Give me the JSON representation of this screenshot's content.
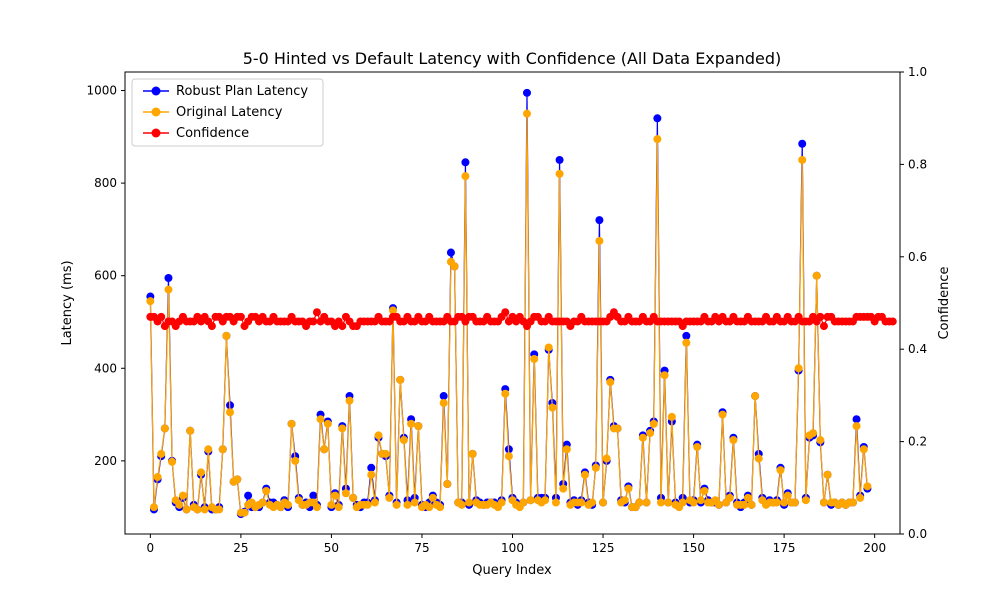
{
  "chart_data": {
    "type": "line",
    "title": "5-0 Hinted vs Default Latency with Confidence (All Data Expanded)",
    "xlabel": "Query Index",
    "ylabel": "Latency (ms)",
    "y2label": "Confidence",
    "xlim": [
      -7,
      207
    ],
    "ylim": [
      42,
      1040
    ],
    "y2lim": [
      0,
      1.0
    ],
    "xticks": [
      0,
      25,
      50,
      75,
      100,
      125,
      150,
      175,
      200
    ],
    "yticks": [
      200,
      400,
      600,
      800,
      1000
    ],
    "y2ticks": [
      0.0,
      0.2,
      0.4,
      0.6,
      0.8,
      1.0
    ],
    "legend_position": "upper left",
    "grid": false,
    "series": [
      {
        "name": "Robust Plan Latency",
        "color": "#0000ff",
        "axis": "left",
        "values": [
          555,
          95,
          160,
          210,
          270,
          595,
          200,
          110,
          100,
          120,
          95,
          265,
          105,
          95,
          170,
          100,
          220,
          95,
          95,
          100,
          225,
          470,
          320,
          155,
          160,
          85,
          90,
          125,
          100,
          100,
          100,
          110,
          140,
          110,
          110,
          105,
          100,
          115,
          100,
          280,
          210,
          120,
          105,
          110,
          100,
          125,
          105,
          300,
          225,
          285,
          100,
          130,
          105,
          275,
          140,
          340,
          120,
          105,
          100,
          110,
          110,
          185,
          115,
          250,
          215,
          210,
          125,
          530,
          110,
          375,
          250,
          115,
          290,
          120,
          275,
          105,
          100,
          110,
          125,
          110,
          105,
          340,
          150,
          650,
          620,
          110,
          110,
          845,
          105,
          215,
          115,
          110,
          105,
          110,
          110,
          110,
          105,
          115,
          355,
          225,
          120,
          110,
          105,
          110,
          995,
          115,
          430,
          120,
          120,
          120,
          440,
          325,
          120,
          850,
          150,
          235,
          110,
          115,
          105,
          115,
          175,
          110,
          105,
          190,
          720,
          110,
          200,
          375,
          275,
          270,
          115,
          110,
          145,
          100,
          100,
          110,
          255,
          110,
          265,
          285,
          940,
          120,
          395,
          110,
          285,
          110,
          105,
          120,
          470,
          110,
          115,
          235,
          110,
          140,
          115,
          110,
          110,
          105,
          305,
          110,
          125,
          250,
          110,
          100,
          110,
          125,
          105,
          340,
          215,
          120,
          110,
          115,
          110,
          115,
          185,
          105,
          130,
          110,
          110,
          395,
          885,
          120,
          250,
          255,
          600,
          240,
          110,
          170,
          105,
          110,
          105,
          110,
          105,
          110,
          110,
          290,
          125,
          230,
          140
        ]
      },
      {
        "name": "Original Latency",
        "color": "#ffa500",
        "axis": "left",
        "values": [
          545,
          100,
          165,
          215,
          270,
          570,
          198,
          115,
          105,
          125,
          95,
          265,
          100,
          95,
          175,
          95,
          225,
          100,
          95,
          95,
          225,
          470,
          305,
          155,
          160,
          88,
          88,
          105,
          110,
          100,
          105,
          110,
          135,
          105,
          100,
          105,
          100,
          110,
          105,
          280,
          200,
          115,
          105,
          105,
          110,
          110,
          100,
          290,
          225,
          280,
          105,
          125,
          100,
          270,
          130,
          330,
          120,
          100,
          105,
          105,
          105,
          170,
          110,
          255,
          215,
          215,
          120,
          525,
          105,
          375,
          245,
          105,
          280,
          110,
          275,
          100,
          105,
          100,
          120,
          105,
          100,
          325,
          150,
          630,
          620,
          110,
          105,
          815,
          110,
          215,
          110,
          105,
          105,
          105,
          110,
          105,
          100,
          110,
          345,
          210,
          115,
          105,
          100,
          110,
          950,
          115,
          420,
          115,
          110,
          115,
          445,
          315,
          110,
          820,
          140,
          225,
          105,
          110,
          110,
          110,
          170,
          105,
          110,
          185,
          675,
          110,
          205,
          370,
          270,
          270,
          110,
          115,
          140,
          100,
          100,
          110,
          250,
          110,
          260,
          280,
          895,
          110,
          385,
          110,
          295,
          105,
          100,
          110,
          455,
          115,
          110,
          230,
          115,
          135,
          110,
          110,
          115,
          105,
          300,
          110,
          120,
          245,
          105,
          105,
          105,
          120,
          105,
          340,
          205,
          115,
          105,
          110,
          110,
          110,
          180,
          110,
          125,
          110,
          110,
          400,
          850,
          115,
          255,
          260,
          600,
          245,
          110,
          170,
          110,
          110,
          105,
          110,
          105,
          110,
          110,
          275,
          120,
          225,
          145
        ]
      },
      {
        "name": "Confidence",
        "color": "#ff0000",
        "axis": "right",
        "values": [
          0.47,
          0.47,
          0.46,
          0.47,
          0.45,
          0.46,
          0.46,
          0.45,
          0.46,
          0.47,
          0.46,
          0.46,
          0.46,
          0.47,
          0.46,
          0.47,
          0.46,
          0.45,
          0.47,
          0.47,
          0.46,
          0.47,
          0.47,
          0.46,
          0.47,
          0.47,
          0.45,
          0.46,
          0.47,
          0.47,
          0.46,
          0.47,
          0.46,
          0.46,
          0.47,
          0.46,
          0.46,
          0.46,
          0.46,
          0.47,
          0.46,
          0.46,
          0.46,
          0.45,
          0.46,
          0.46,
          0.48,
          0.46,
          0.47,
          0.46,
          0.46,
          0.45,
          0.46,
          0.45,
          0.47,
          0.46,
          0.45,
          0.45,
          0.46,
          0.46,
          0.46,
          0.46,
          0.46,
          0.47,
          0.46,
          0.46,
          0.46,
          0.47,
          0.47,
          0.46,
          0.46,
          0.47,
          0.46,
          0.46,
          0.47,
          0.46,
          0.46,
          0.47,
          0.46,
          0.46,
          0.46,
          0.46,
          0.47,
          0.46,
          0.46,
          0.47,
          0.47,
          0.46,
          0.47,
          0.47,
          0.46,
          0.46,
          0.46,
          0.47,
          0.46,
          0.46,
          0.46,
          0.47,
          0.48,
          0.46,
          0.47,
          0.46,
          0.47,
          0.46,
          0.45,
          0.46,
          0.47,
          0.47,
          0.46,
          0.46,
          0.47,
          0.46,
          0.46,
          0.46,
          0.46,
          0.46,
          0.45,
          0.46,
          0.46,
          0.47,
          0.46,
          0.46,
          0.46,
          0.46,
          0.46,
          0.46,
          0.46,
          0.47,
          0.48,
          0.47,
          0.46,
          0.46,
          0.47,
          0.46,
          0.46,
          0.46,
          0.47,
          0.46,
          0.46,
          0.47,
          0.46,
          0.46,
          0.46,
          0.46,
          0.46,
          0.46,
          0.46,
          0.45,
          0.46,
          0.46,
          0.46,
          0.46,
          0.46,
          0.47,
          0.46,
          0.46,
          0.47,
          0.46,
          0.47,
          0.46,
          0.46,
          0.47,
          0.46,
          0.46,
          0.46,
          0.47,
          0.46,
          0.46,
          0.46,
          0.46,
          0.47,
          0.46,
          0.46,
          0.47,
          0.46,
          0.46,
          0.47,
          0.46,
          0.46,
          0.47,
          0.46,
          0.46,
          0.46,
          0.47,
          0.46,
          0.47,
          0.45,
          0.47,
          0.47,
          0.46,
          0.46,
          0.46,
          0.46,
          0.46,
          0.46,
          0.47,
          0.47,
          0.47,
          0.47,
          0.47,
          0.46,
          0.47,
          0.47,
          0.46,
          0.46,
          0.46
        ]
      }
    ]
  }
}
